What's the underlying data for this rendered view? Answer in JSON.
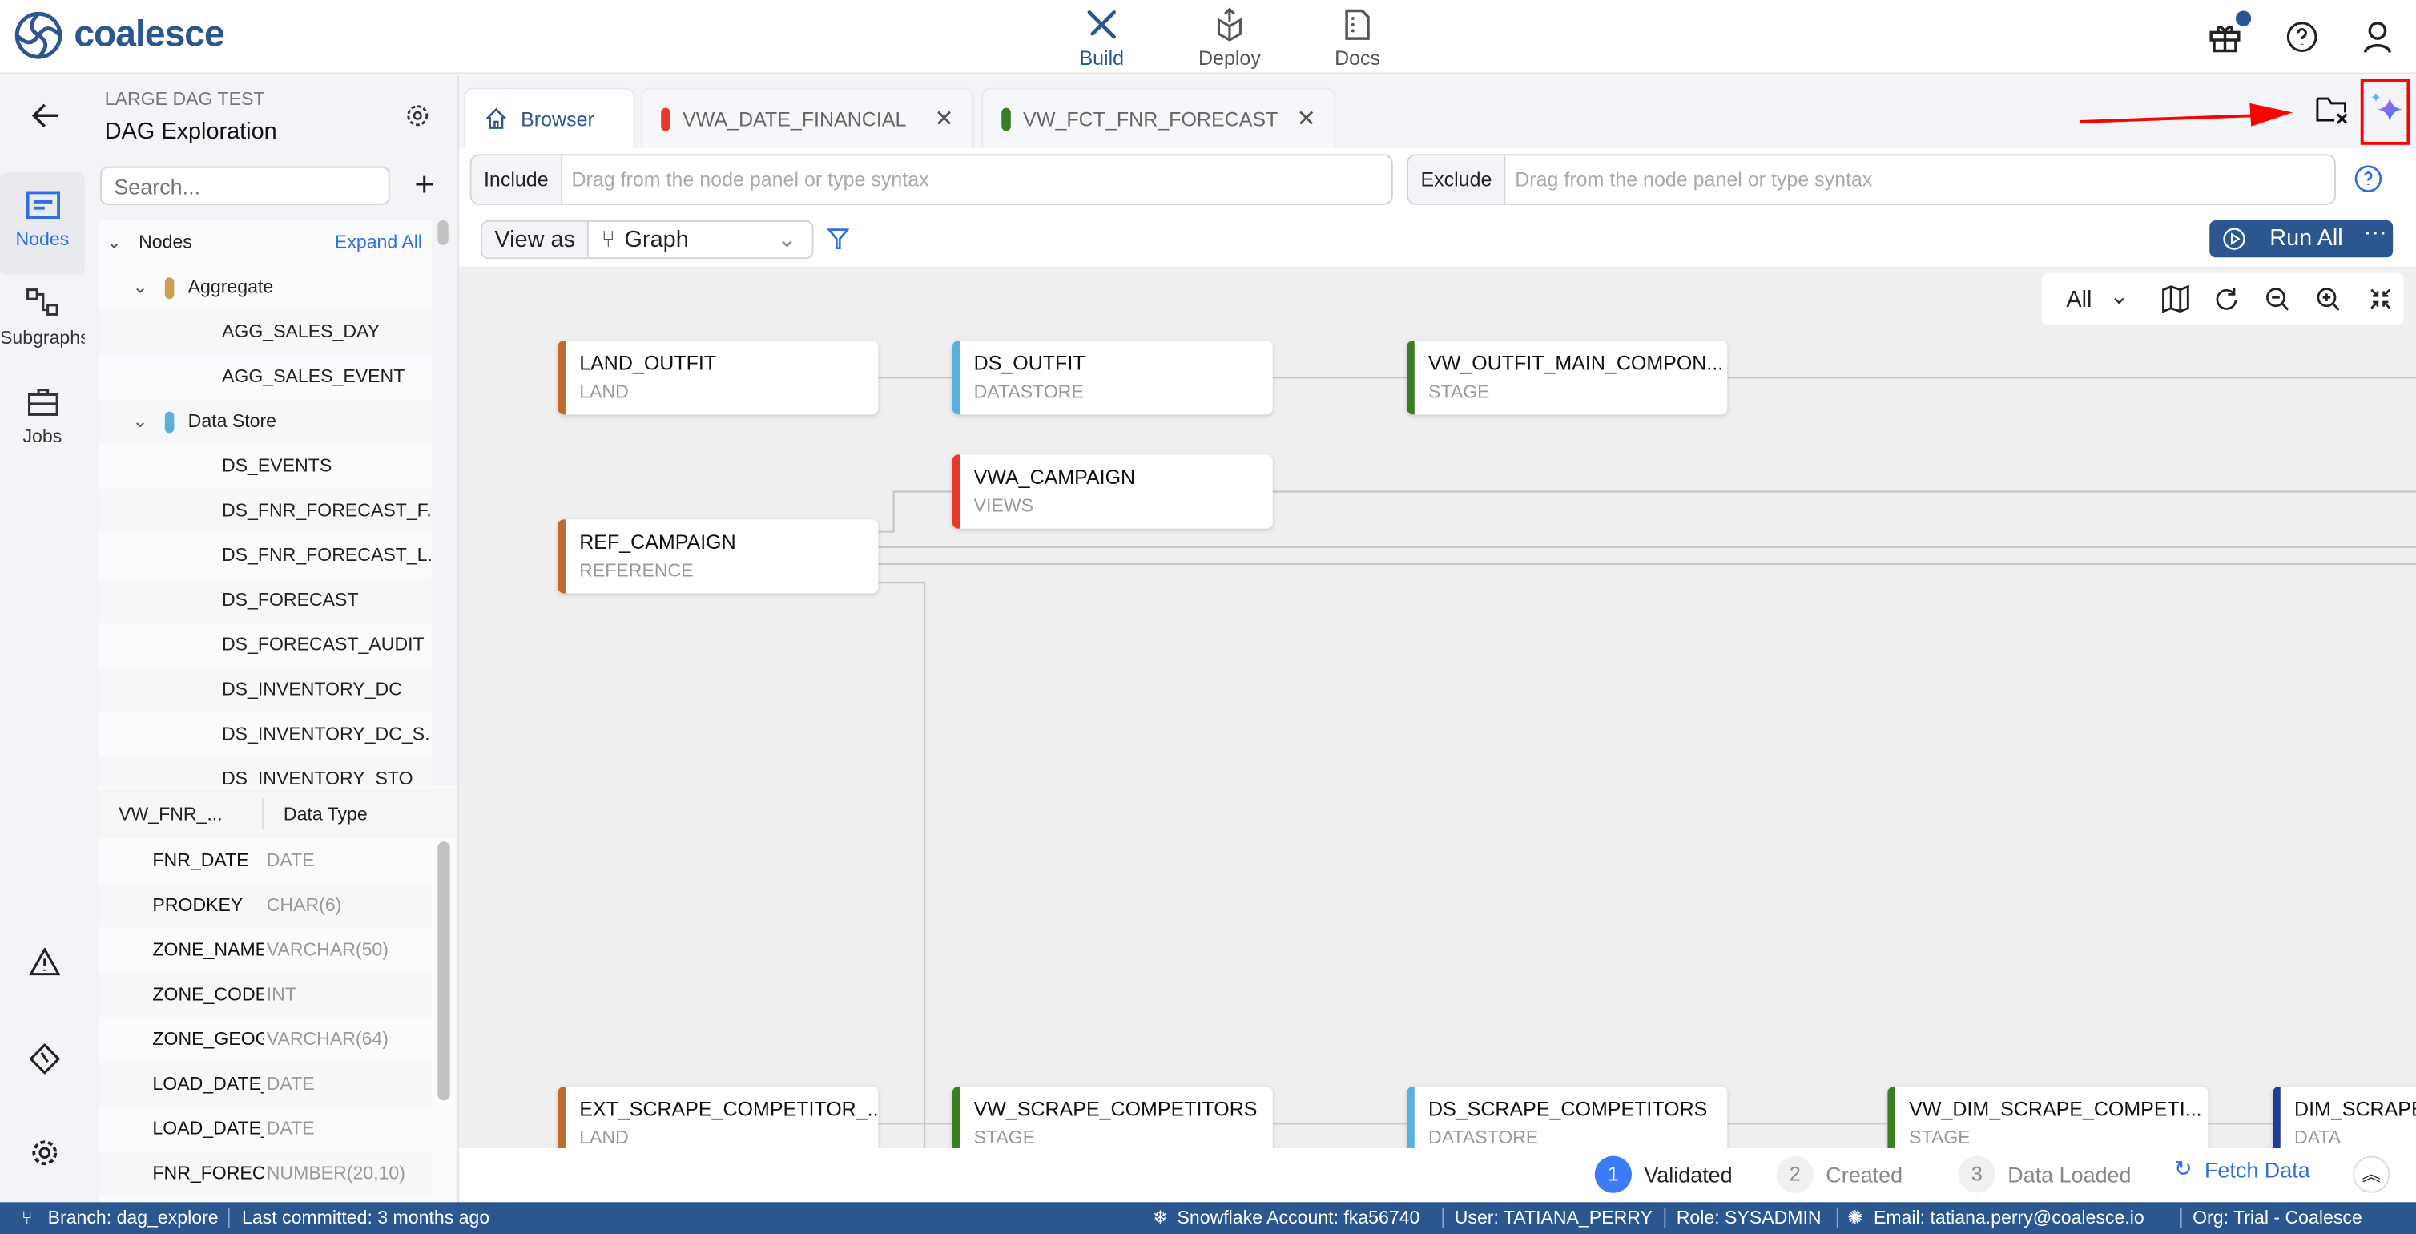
{
  "app": {
    "logo": "coalesce"
  },
  "nav": [
    {
      "label": "Build",
      "icon": "build-icon",
      "active": true
    },
    {
      "label": "Deploy",
      "icon": "deploy-icon"
    },
    {
      "label": "Docs",
      "icon": "docs-icon"
    }
  ],
  "rail": {
    "items": [
      {
        "label": "Nodes",
        "active": true
      },
      {
        "label": "Subgraphs"
      },
      {
        "label": "Jobs"
      }
    ]
  },
  "sidebar": {
    "project": "LARGE DAG TEST",
    "workspace": "DAG Exploration",
    "search_placeholder": "Search...",
    "tree_header": "Nodes",
    "expand_all": "Expand All",
    "tree": [
      {
        "label": "Aggregate",
        "group": true,
        "color": "#c9a04f"
      },
      {
        "label": "AGG_SALES_DAY"
      },
      {
        "label": "AGG_SALES_EVENT"
      },
      {
        "label": "Data Store",
        "group": true,
        "color": "#5ab0dd"
      },
      {
        "label": "DS_EVENTS"
      },
      {
        "label": "DS_FNR_FORECAST_F..."
      },
      {
        "label": "DS_FNR_FORECAST_L..."
      },
      {
        "label": "DS_FORECAST"
      },
      {
        "label": "DS_FORECAST_AUDIT"
      },
      {
        "label": "DS_INVENTORY_DC"
      },
      {
        "label": "DS_INVENTORY_DC_S..."
      },
      {
        "label": "DS_INVENTORY_STO"
      }
    ]
  },
  "columns": {
    "header_name": "VW_FNR_...",
    "header_type": "Data Type",
    "rows": [
      {
        "name": "FNR_DATE",
        "type": "DATE"
      },
      {
        "name": "PRODKEY",
        "type": "CHAR(6)"
      },
      {
        "name": "ZONE_NAME",
        "type": "VARCHAR(50)"
      },
      {
        "name": "ZONE_CODE",
        "type": "INT"
      },
      {
        "name": "ZONE_GEOGRAPHY",
        "type": "VARCHAR(64)"
      },
      {
        "name": "LOAD_DATE_LOCAL",
        "type": "DATE"
      },
      {
        "name": "LOAD_DATE_UTC",
        "type": "DATE"
      },
      {
        "name": "FNR_FORECAST",
        "type": "NUMBER(20,10)"
      }
    ]
  },
  "tabs": [
    {
      "label": "Browser"
    },
    {
      "label": "VWA_DATE_FINANCIAL",
      "color": "#e8382c"
    },
    {
      "label": "VW_FCT_FNR_FORECAST",
      "color": "#3a7d23"
    }
  ],
  "filters": {
    "include_label": "Include",
    "include_placeholder": "Drag from the node panel or type syntax",
    "exclude_label": "Exclude",
    "exclude_placeholder": "Drag from the node panel or type syntax"
  },
  "view": {
    "label": "View as",
    "value": "Graph"
  },
  "run_all": "Run All",
  "graph_toolbar": {
    "scope": "All"
  },
  "nodes": [
    {
      "name": "LAND_OUTFIT",
      "type": "LAND",
      "color": "#c0692f"
    },
    {
      "name": "DS_OUTFIT",
      "type": "DATASTORE",
      "color": "#5ab0dd"
    },
    {
      "name": "VW_OUTFIT_MAIN_COMPON...",
      "type": "STAGE",
      "color": "#3a7d23"
    },
    {
      "name": "VWA_CAMPAIGN",
      "type": "VIEWS",
      "color": "#e8382c"
    },
    {
      "name": "REF_CAMPAIGN",
      "type": "REFERENCE",
      "color": "#c0692f"
    },
    {
      "name": "EXT_SCRAPE_COMPETITOR_...",
      "type": "LAND",
      "color": "#c0692f"
    },
    {
      "name": "VW_SCRAPE_COMPETITORS",
      "type": "STAGE",
      "color": "#3a7d23"
    },
    {
      "name": "DS_SCRAPE_COMPETITORS",
      "type": "DATASTORE",
      "color": "#5ab0dd"
    },
    {
      "name": "VW_DIM_SCRAPE_COMPETI...",
      "type": "STAGE",
      "color": "#3a7d23"
    },
    {
      "name": "DIM_SCRAPE",
      "type": "DATA",
      "color": "#253a96"
    }
  ],
  "steps": [
    {
      "num": "1",
      "label": "Validated",
      "active": true
    },
    {
      "num": "2",
      "label": "Created"
    },
    {
      "num": "3",
      "label": "Data Loaded"
    }
  ],
  "fetch_data": "Fetch Data",
  "footer": {
    "branch": "Branch: dag_explore",
    "committed": "Last committed: 3 months ago",
    "account": "Snowflake Account: fka56740",
    "user": "User: TATIANA_PERRY",
    "role": "Role: SYSADMIN",
    "email": "Email: tatiana.perry@coalesce.io",
    "org": "Org: Trial - Coalesce"
  },
  "colors": {
    "brand": "#2b5690",
    "accent": "#2f6fe0",
    "annotation": "#ff0000"
  }
}
